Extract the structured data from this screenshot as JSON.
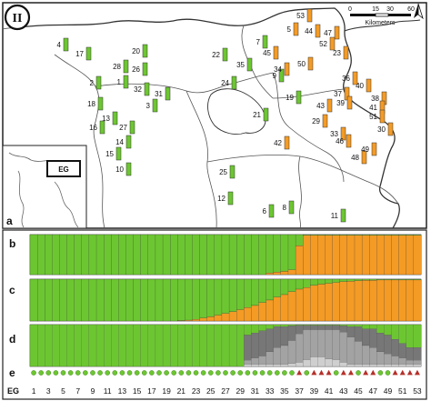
{
  "figure": {
    "badge": "II",
    "panel_labels": {
      "a": "a",
      "b": "b",
      "c": "c",
      "d": "d",
      "e": "e"
    },
    "inset_label": "EG",
    "scalebar": {
      "ticks": [
        "0",
        "15",
        "30",
        "60"
      ],
      "unit": "Kilometers"
    },
    "north_arrow": "north-arrow",
    "x_axis_label": "EG",
    "x_ticks": [
      "1",
      "3",
      "5",
      "7",
      "9",
      "11",
      "13",
      "15",
      "17",
      "19",
      "21",
      "23",
      "25",
      "27",
      "29",
      "31",
      "33",
      "35",
      "37",
      "39",
      "41",
      "43",
      "45",
      "47",
      "49",
      "51",
      "53"
    ]
  },
  "colors": {
    "green": "#6cc631",
    "orange": "#f49b25",
    "dark_gray": "#777777",
    "mid_gray": "#a3a3a3",
    "light_gray": "#cfcfcf",
    "land": "#ffffff",
    "lake": "#ffffff",
    "marker_circle": "#6cc631",
    "marker_triangle": "#b5302a"
  },
  "map_sites": [
    {
      "id": "1",
      "lx": 130,
      "ly": 90,
      "c": "green"
    },
    {
      "id": "2",
      "lx": 100,
      "ly": 91,
      "c": "green"
    },
    {
      "id": "3",
      "lx": 162,
      "ly": 116,
      "c": "green"
    },
    {
      "id": "4",
      "lx": 64,
      "ly": 49,
      "c": "green"
    },
    {
      "id": "5",
      "lx": 317,
      "ly": 32,
      "c": "orange"
    },
    {
      "id": "6",
      "lx": 290,
      "ly": 232,
      "c": "green"
    },
    {
      "id": "7",
      "lx": 283,
      "ly": 46,
      "c": "green"
    },
    {
      "id": "8",
      "lx": 312,
      "ly": 228,
      "c": "green"
    },
    {
      "id": "9",
      "lx": 301,
      "ly": 83,
      "c": "green"
    },
    {
      "id": "10",
      "lx": 133,
      "ly": 186,
      "c": "green"
    },
    {
      "id": "11",
      "lx": 369,
      "ly": 237,
      "c": "green"
    },
    {
      "id": "12",
      "lx": 245,
      "ly": 218,
      "c": "green"
    },
    {
      "id": "13",
      "lx": 118,
      "ly": 130,
      "c": "green"
    },
    {
      "id": "14",
      "lx": 133,
      "ly": 156,
      "c": "green"
    },
    {
      "id": "15",
      "lx": 122,
      "ly": 169,
      "c": "green"
    },
    {
      "id": "16",
      "lx": 104,
      "ly": 140,
      "c": "green"
    },
    {
      "id": "17",
      "lx": 89,
      "ly": 59,
      "c": "green"
    },
    {
      "id": "18",
      "lx": 102,
      "ly": 114,
      "c": "green"
    },
    {
      "id": "19",
      "lx": 320,
      "ly": 107,
      "c": "green"
    },
    {
      "id": "20",
      "lx": 151,
      "ly": 56,
      "c": "green"
    },
    {
      "id": "21",
      "lx": 284,
      "ly": 126,
      "c": "green"
    },
    {
      "id": "22",
      "lx": 239,
      "ly": 60,
      "c": "green"
    },
    {
      "id": "23",
      "lx": 372,
      "ly": 58,
      "c": "orange"
    },
    {
      "id": "24",
      "lx": 249,
      "ly": 91,
      "c": "green"
    },
    {
      "id": "25",
      "lx": 247,
      "ly": 189,
      "c": "green"
    },
    {
      "id": "26",
      "lx": 151,
      "ly": 76,
      "c": "green"
    },
    {
      "id": "27",
      "lx": 137,
      "ly": 140,
      "c": "green"
    },
    {
      "id": "28",
      "lx": 130,
      "ly": 73,
      "c": "green"
    },
    {
      "id": "29",
      "lx": 349,
      "ly": 133,
      "c": "orange"
    },
    {
      "id": "30",
      "lx": 421,
      "ly": 142,
      "c": "orange"
    },
    {
      "id": "31",
      "lx": 176,
      "ly": 103,
      "c": "green"
    },
    {
      "id": "32",
      "lx": 153,
      "ly": 98,
      "c": "green"
    },
    {
      "id": "33",
      "lx": 369,
      "ly": 147,
      "c": "orange"
    },
    {
      "id": "34",
      "lx": 307,
      "ly": 76,
      "c": "orange"
    },
    {
      "id": "35",
      "lx": 266,
      "ly": 71,
      "c": "green"
    },
    {
      "id": "36",
      "lx": 382,
      "ly": 86,
      "c": "orange"
    },
    {
      "id": "37",
      "lx": 373,
      "ly": 103,
      "c": "orange"
    },
    {
      "id": "38",
      "lx": 414,
      "ly": 108,
      "c": "orange"
    },
    {
      "id": "39",
      "lx": 376,
      "ly": 113,
      "c": "orange"
    },
    {
      "id": "40",
      "lx": 397,
      "ly": 94,
      "c": "orange"
    },
    {
      "id": "41",
      "lx": 412,
      "ly": 118,
      "c": "orange"
    },
    {
      "id": "42",
      "lx": 307,
      "ly": 157,
      "c": "orange"
    },
    {
      "id": "43",
      "lx": 354,
      "ly": 116,
      "c": "orange"
    },
    {
      "id": "44",
      "lx": 341,
      "ly": 34,
      "c": "orange"
    },
    {
      "id": "45",
      "lx": 295,
      "ly": 58,
      "c": "orange"
    },
    {
      "id": "46",
      "lx": 375,
      "ly": 155,
      "c": "orange"
    },
    {
      "id": "47",
      "lx": 362,
      "ly": 36,
      "c": "orange"
    },
    {
      "id": "48",
      "lx": 392,
      "ly": 173,
      "c": "orange"
    },
    {
      "id": "49",
      "lx": 403,
      "ly": 164,
      "c": "orange"
    },
    {
      "id": "50",
      "lx": 333,
      "ly": 70,
      "c": "orange"
    },
    {
      "id": "51",
      "lx": 412,
      "ly": 128,
      "c": "orange"
    },
    {
      "id": "52",
      "lx": 357,
      "ly": 48,
      "c": "orange"
    },
    {
      "id": "53",
      "lx": 332,
      "ly": 17,
      "c": "orange"
    }
  ],
  "structure_plot": {
    "b_orange_fraction": [
      0,
      0,
      0,
      0,
      0,
      0,
      0,
      0,
      0,
      0,
      0,
      0,
      0,
      0,
      0,
      0,
      0,
      0,
      0,
      0,
      0,
      0,
      0,
      0,
      0,
      0,
      0,
      0,
      0,
      0,
      0,
      0,
      0.04,
      0.06,
      0.08,
      0.12,
      0.72,
      0.98,
      0.98,
      0.98,
      0.98,
      0.98,
      0.98,
      0.98,
      0.98,
      0.98,
      0.98,
      0.98,
      0.98,
      0.98,
      0.98,
      0.98,
      0.98
    ],
    "c_orange_fraction": [
      0,
      0,
      0,
      0,
      0,
      0,
      0,
      0,
      0,
      0,
      0,
      0,
      0,
      0,
      0,
      0,
      0,
      0,
      0,
      0,
      0.01,
      0.02,
      0.04,
      0.07,
      0.1,
      0.14,
      0.18,
      0.22,
      0.27,
      0.32,
      0.37,
      0.44,
      0.5,
      0.57,
      0.63,
      0.7,
      0.76,
      0.8,
      0.85,
      0.88,
      0.9,
      0.92,
      0.94,
      0.95,
      0.96,
      0.97,
      0.97,
      0.98,
      0.98,
      0.98,
      0.98,
      0.98,
      0.98
    ],
    "d_shares": [
      [
        1,
        0,
        0,
        0
      ],
      [
        1,
        0,
        0,
        0
      ],
      [
        1,
        0,
        0,
        0
      ],
      [
        1,
        0,
        0,
        0
      ],
      [
        1,
        0,
        0,
        0
      ],
      [
        1,
        0,
        0,
        0
      ],
      [
        1,
        0,
        0,
        0
      ],
      [
        1,
        0,
        0,
        0
      ],
      [
        1,
        0,
        0,
        0
      ],
      [
        1,
        0,
        0,
        0
      ],
      [
        1,
        0,
        0,
        0
      ],
      [
        1,
        0,
        0,
        0
      ],
      [
        1,
        0,
        0,
        0
      ],
      [
        1,
        0,
        0,
        0
      ],
      [
        1,
        0,
        0,
        0
      ],
      [
        1,
        0,
        0,
        0
      ],
      [
        1,
        0,
        0,
        0
      ],
      [
        1,
        0,
        0,
        0
      ],
      [
        1,
        0,
        0,
        0
      ],
      [
        1,
        0,
        0,
        0
      ],
      [
        1,
        0,
        0,
        0
      ],
      [
        1,
        0,
        0,
        0
      ],
      [
        1,
        0,
        0,
        0
      ],
      [
        1,
        0,
        0,
        0
      ],
      [
        1,
        0,
        0,
        0
      ],
      [
        1,
        0,
        0,
        0
      ],
      [
        1,
        0,
        0,
        0
      ],
      [
        1,
        0,
        0,
        0
      ],
      [
        1,
        0,
        0,
        0
      ],
      [
        0.25,
        0.6,
        0.1,
        0.05
      ],
      [
        0.2,
        0.6,
        0.15,
        0.05
      ],
      [
        0.15,
        0.6,
        0.2,
        0.05
      ],
      [
        0.1,
        0.55,
        0.3,
        0.05
      ],
      [
        0.05,
        0.5,
        0.4,
        0.05
      ],
      [
        0.05,
        0.45,
        0.45,
        0.05
      ],
      [
        0.03,
        0.35,
        0.55,
        0.07
      ],
      [
        0.02,
        0.2,
        0.68,
        0.1
      ],
      [
        0.02,
        0.1,
        0.72,
        0.16
      ],
      [
        0.02,
        0.1,
        0.65,
        0.23
      ],
      [
        0.02,
        0.1,
        0.65,
        0.23
      ],
      [
        0.02,
        0.1,
        0.7,
        0.18
      ],
      [
        0.02,
        0.1,
        0.72,
        0.16
      ],
      [
        0.03,
        0.15,
        0.72,
        0.1
      ],
      [
        0.05,
        0.25,
        0.65,
        0.05
      ],
      [
        0.05,
        0.35,
        0.55,
        0.05
      ],
      [
        0.1,
        0.4,
        0.45,
        0.05
      ],
      [
        0.1,
        0.45,
        0.4,
        0.05
      ],
      [
        0.2,
        0.45,
        0.3,
        0.05
      ],
      [
        0.25,
        0.45,
        0.25,
        0.05
      ],
      [
        0.35,
        0.4,
        0.2,
        0.05
      ],
      [
        0.45,
        0.35,
        0.15,
        0.05
      ],
      [
        0.55,
        0.3,
        0.1,
        0.05
      ],
      [
        0.55,
        0.3,
        0.1,
        0.05
      ]
    ],
    "e_markers": [
      "c",
      "c",
      "c",
      "c",
      "c",
      "c",
      "c",
      "c",
      "c",
      "c",
      "c",
      "c",
      "c",
      "c",
      "c",
      "c",
      "c",
      "c",
      "c",
      "c",
      "c",
      "c",
      "c",
      "c",
      "c",
      "c",
      "c",
      "c",
      "c",
      "c",
      "c",
      "c",
      "c",
      "c",
      "c",
      "c",
      "t",
      "c",
      "t",
      "t",
      "t",
      "c",
      "t",
      "t",
      "c",
      "t",
      "t",
      "c",
      "c",
      "t",
      "t",
      "t",
      "t"
    ]
  }
}
